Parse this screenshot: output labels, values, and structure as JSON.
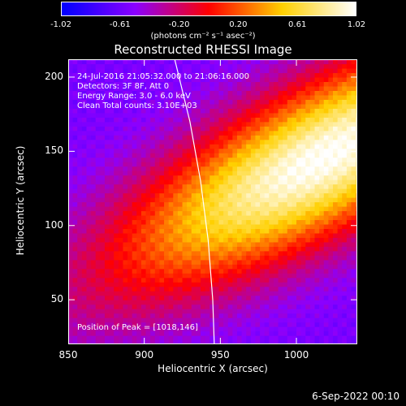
{
  "colorbar": {
    "ticks": [
      "-1.02",
      "-0.61",
      "-0.20",
      "0.20",
      "0.61",
      "1.02"
    ],
    "unit_label": "(photons cm⁻² s⁻¹ asec⁻²)",
    "colors": [
      "#0000ff",
      "#8b00ff",
      "#ff0000",
      "#ffd000",
      "#ffffff"
    ]
  },
  "title": "Reconstructed RHESSI Image",
  "annotations": {
    "line1": "24-Jul-2016 21:05:32.000 to 21:06:16.000",
    "line2": "Detectors: 3F 8F, Att 0",
    "line3": "Energy Range: 3.0 - 6.0 keV",
    "line4": "Clean     Total counts: 3.10E+03",
    "peak": "Position of Peak = [1018,146]"
  },
  "footer": "6-Sep-2022 00:10",
  "chart_data": {
    "type": "heatmap",
    "title": "Reconstructed RHESSI Image",
    "xlabel": "Heliocentric X (arcsec)",
    "ylabel": "Heliocentric Y (arcsec)",
    "xlim": [
      850,
      1040
    ],
    "ylim": [
      20,
      212
    ],
    "xticks": [
      850,
      900,
      950,
      1000
    ],
    "yticks": [
      50,
      100,
      150,
      200
    ],
    "colorbar_range": [
      -1.02,
      1.02
    ],
    "peak": [
      1018,
      146
    ],
    "limb_arc": [
      [
        920,
        212
      ],
      [
        930,
        170
      ],
      [
        937,
        130
      ],
      [
        942,
        90
      ],
      [
        945,
        50
      ],
      [
        946,
        20
      ]
    ]
  }
}
